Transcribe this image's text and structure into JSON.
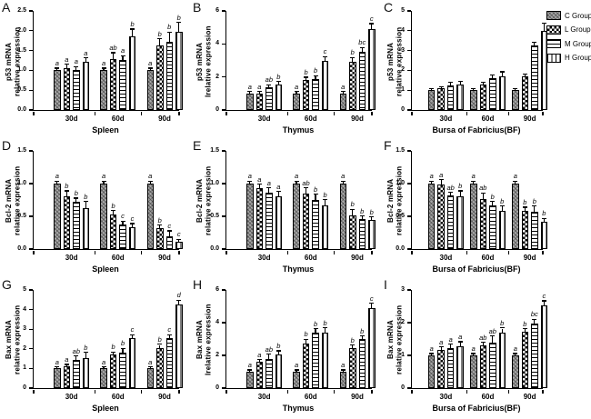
{
  "figure_background": "#ffffff",
  "ink_color": "#000000",
  "legend": {
    "items": [
      {
        "label": "C Group",
        "pattern": "c"
      },
      {
        "label": "L Group",
        "pattern": "l"
      },
      {
        "label": "M Group",
        "pattern": "m"
      },
      {
        "label": "H Group",
        "pattern": "h"
      }
    ]
  },
  "series_names": [
    "C Group",
    "L Group",
    "M Group",
    "H Group"
  ],
  "series_patterns": [
    "c",
    "l",
    "m",
    "h"
  ],
  "chart_data": [
    {
      "type": "bar",
      "panel_letter": "A",
      "ylabel_lines": [
        "p53 mRNA",
        "relative expression"
      ],
      "xlabel": "Spleen",
      "categories": [
        "30d",
        "60d",
        "90d"
      ],
      "ylim": [
        0,
        2.5
      ],
      "ytick_labels": [
        "0.0",
        "0.5",
        "1.0",
        "1.5",
        "2.0",
        "2.5"
      ],
      "values": [
        [
          1.0,
          1.05,
          1.02,
          1.22
        ],
        [
          1.0,
          1.28,
          1.26,
          1.85
        ],
        [
          1.0,
          1.63,
          1.73,
          1.98
        ]
      ],
      "errors": [
        [
          0.04,
          0.09,
          0.06,
          0.08
        ],
        [
          0.04,
          0.15,
          0.1,
          0.18
        ],
        [
          0.04,
          0.15,
          0.22,
          0.22
        ]
      ],
      "sig_letters": [
        [
          "a",
          "a",
          "a",
          "a"
        ],
        [
          "a",
          "ab",
          "a",
          "b"
        ],
        [
          "a",
          "b",
          "b",
          "b"
        ]
      ]
    },
    {
      "type": "bar",
      "panel_letter": "B",
      "ylabel_lines": [
        "p53 mRNA",
        "Irelative expression"
      ],
      "xlabel": "Thymus",
      "categories": [
        "30d",
        "60d",
        "90d"
      ],
      "ylim": [
        0,
        6
      ],
      "ytick_labels": [
        "0",
        "2",
        "4",
        "6"
      ],
      "values": [
        [
          1.0,
          1.0,
          1.35,
          1.55
        ],
        [
          1.0,
          1.8,
          1.85,
          2.95
        ],
        [
          1.0,
          2.9,
          3.55,
          4.9
        ]
      ],
      "errors": [
        [
          0.08,
          0.08,
          0.15,
          0.15
        ],
        [
          0.08,
          0.15,
          0.2,
          0.25
        ],
        [
          0.08,
          0.25,
          0.2,
          0.3
        ]
      ],
      "sig_letters": [
        [
          "a",
          "a",
          "ab",
          "b"
        ],
        [
          "a",
          "b",
          "b",
          "c"
        ],
        [
          "a",
          "b",
          "bc",
          "c"
        ]
      ]
    },
    {
      "type": "bar",
      "panel_letter": "C",
      "ylabel_lines": [
        "p53 mRNA",
        "relative expression"
      ],
      "xlabel": "Bursa of Fabricius(BF)",
      "categories": [
        "30d",
        "60d",
        "90d"
      ],
      "ylim": [
        0,
        5
      ],
      "ytick_labels": [
        "0",
        "1",
        "2",
        "3",
        "4",
        "5"
      ],
      "values": [
        [
          1.0,
          1.08,
          1.25,
          1.3
        ],
        [
          1.0,
          1.3,
          1.6,
          1.7
        ],
        [
          1.0,
          1.7,
          3.25,
          4.0
        ]
      ],
      "errors": [
        [
          0.04,
          0.08,
          0.12,
          0.12
        ],
        [
          0.04,
          0.08,
          0.15,
          0.2
        ],
        [
          0.04,
          0.1,
          0.15,
          0.35
        ]
      ],
      "sig_letters": [
        [
          "",
          "",
          "",
          ""
        ],
        [
          "",
          "",
          "",
          ""
        ],
        [
          "",
          "",
          "",
          ""
        ]
      ]
    },
    {
      "type": "bar",
      "panel_letter": "D",
      "ylabel_lines": [
        "Bcl-2 mRNA",
        "relative expression"
      ],
      "xlabel": "Spleen",
      "categories": [
        "30d",
        "60d",
        "90d"
      ],
      "ylim": [
        0,
        1.5
      ],
      "ytick_labels": [
        "0.0",
        "0.5",
        "1.0",
        "1.5"
      ],
      "values": [
        [
          1.0,
          0.8,
          0.72,
          0.63
        ],
        [
          1.0,
          0.53,
          0.38,
          0.34
        ],
        [
          1.0,
          0.32,
          0.2,
          0.11
        ]
      ],
      "errors": [
        [
          0.03,
          0.08,
          0.05,
          0.09
        ],
        [
          0.03,
          0.05,
          0.04,
          0.04
        ],
        [
          0.03,
          0.04,
          0.07,
          0.03
        ]
      ],
      "sig_letters": [
        [
          "a",
          "b",
          "b",
          "b"
        ],
        [
          "a",
          "b",
          "c",
          "c"
        ],
        [
          "a",
          "b",
          "c",
          "c"
        ]
      ]
    },
    {
      "type": "bar",
      "panel_letter": "E",
      "ylabel_lines": [
        "Bcl-2 mRNA",
        "relative expression"
      ],
      "xlabel": "Thymus",
      "categories": [
        "30d",
        "60d",
        "90d"
      ],
      "ylim": [
        0,
        1.5
      ],
      "ytick_labels": [
        "0.0",
        "0.5",
        "1.0",
        "1.5"
      ],
      "values": [
        [
          1.0,
          0.93,
          0.86,
          0.8
        ],
        [
          1.0,
          0.85,
          0.75,
          0.66
        ],
        [
          1.0,
          0.52,
          0.46,
          0.45
        ]
      ],
      "errors": [
        [
          0.03,
          0.05,
          0.07,
          0.07
        ],
        [
          0.03,
          0.08,
          0.08,
          0.09
        ],
        [
          0.03,
          0.08,
          0.04,
          0.03
        ]
      ],
      "sig_letters": [
        [
          "a",
          "a",
          "a",
          "a"
        ],
        [
          "a",
          "ab",
          "b",
          "b"
        ],
        [
          "a",
          "b",
          "b",
          "b"
        ]
      ]
    },
    {
      "type": "bar",
      "panel_letter": "F",
      "ylabel_lines": [
        "Bcl-2 mRNA",
        "relative expression"
      ],
      "xlabel": "Bursa of Fabricius(BF)",
      "categories": [
        "30d",
        "60d",
        "90d"
      ],
      "ylim": [
        0,
        1.5
      ],
      "ytick_labels": [
        "0.0",
        "0.5",
        "1.0",
        "1.5"
      ],
      "values": [
        [
          1.0,
          0.98,
          0.82,
          0.81
        ],
        [
          1.0,
          0.76,
          0.67,
          0.59
        ],
        [
          1.0,
          0.58,
          0.57,
          0.42
        ]
      ],
      "errors": [
        [
          0.03,
          0.07,
          0.04,
          0.07
        ],
        [
          0.03,
          0.09,
          0.05,
          0.06
        ],
        [
          0.03,
          0.05,
          0.08,
          0.04
        ]
      ],
      "sig_letters": [
        [
          "a",
          "a",
          "ab",
          "b"
        ],
        [
          "a",
          "ab",
          "b",
          "b"
        ],
        [
          "a",
          "b",
          "b",
          "b"
        ]
      ]
    },
    {
      "type": "bar",
      "panel_letter": "G",
      "ylabel_lines": [
        "Bax mRNA",
        "relative expression"
      ],
      "xlabel": "Spleen",
      "categories": [
        "30d",
        "60d",
        "90d"
      ],
      "ylim": [
        0,
        5
      ],
      "ytick_labels": [
        "0",
        "1",
        "2",
        "3",
        "4",
        "5"
      ],
      "values": [
        [
          1.0,
          1.1,
          1.45,
          1.55
        ],
        [
          1.0,
          1.7,
          1.8,
          2.55
        ],
        [
          1.0,
          2.05,
          2.55,
          4.25
        ]
      ],
      "errors": [
        [
          0.05,
          0.08,
          0.15,
          0.25
        ],
        [
          0.05,
          0.12,
          0.2,
          0.15
        ],
        [
          0.05,
          0.15,
          0.15,
          0.2
        ]
      ],
      "sig_letters": [
        [
          "a",
          "a",
          "ab",
          "b"
        ],
        [
          "a",
          "b",
          "b",
          "c"
        ],
        [
          "a",
          "b",
          "c",
          "d"
        ]
      ]
    },
    {
      "type": "bar",
      "panel_letter": "H",
      "ylabel_lines": [
        "Bax mRNA",
        "Irelative expression"
      ],
      "xlabel": "Thymus",
      "categories": [
        "30d",
        "60d",
        "90d"
      ],
      "ylim": [
        0,
        6
      ],
      "ytick_labels": [
        "0",
        "2",
        "4",
        "6"
      ],
      "values": [
        [
          1.0,
          1.6,
          1.8,
          2.05
        ],
        [
          1.0,
          2.75,
          3.4,
          3.4
        ],
        [
          1.0,
          2.45,
          3.0,
          4.9
        ]
      ],
      "errors": [
        [
          0.08,
          0.12,
          0.25,
          0.2
        ],
        [
          0.08,
          0.2,
          0.2,
          0.25
        ],
        [
          0.08,
          0.15,
          0.15,
          0.25
        ]
      ],
      "sig_letters": [
        [
          "a",
          "a",
          "ab",
          "b"
        ],
        [
          "a",
          "b",
          "b",
          "b"
        ],
        [
          "a",
          "b",
          "b",
          "c"
        ]
      ]
    },
    {
      "type": "bar",
      "panel_letter": "I",
      "ylabel_lines": [
        "Bax mRNA",
        "relative expression"
      ],
      "xlabel": "Bursa of Fabricius(BF)",
      "categories": [
        "30d",
        "60d",
        "90d"
      ],
      "ylim": [
        0,
        3
      ],
      "ytick_labels": [
        "0",
        "1",
        "2",
        "3"
      ],
      "values": [
        [
          1.0,
          1.17,
          1.23,
          1.28
        ],
        [
          1.0,
          1.3,
          1.4,
          1.7
        ],
        [
          1.0,
          1.72,
          1.97,
          2.53
        ]
      ],
      "errors": [
        [
          0.04,
          0.08,
          0.1,
          0.12
        ],
        [
          0.04,
          0.08,
          0.18,
          0.12
        ],
        [
          0.04,
          0.08,
          0.12,
          0.12
        ]
      ],
      "sig_letters": [
        [
          "a",
          "a",
          "a",
          "a"
        ],
        [
          "a",
          "ab",
          "ab",
          "b"
        ],
        [
          "a",
          "b",
          "bc",
          "c"
        ]
      ]
    }
  ]
}
